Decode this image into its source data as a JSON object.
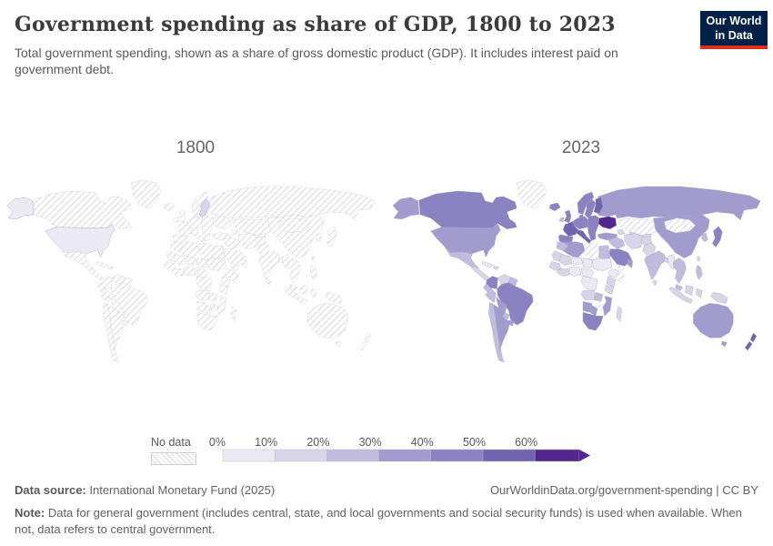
{
  "header": {
    "title": "Government spending as share of GDP, 1800 to 2023",
    "subtitle": "Total government spending, shown as a share of gross domestic product (GDP). It includes interest paid on government debt.",
    "logo": {
      "line1": "Our World",
      "line2": "in Data"
    }
  },
  "legend": {
    "no_data_label": "No data",
    "ticks": [
      "0%",
      "10%",
      "20%",
      "30%",
      "40%",
      "50%",
      "60%"
    ]
  },
  "footer": {
    "data_source_label": "Data source:",
    "data_source_value": " International Monetary Fund (2025)",
    "url_credit": "OurWorldinData.org/government-spending | CC BY",
    "note_label": "Note:",
    "note_value": " Data for general government (includes central, state, and local governments and social security funds) is used when available. When not, data refers to central government."
  },
  "colors": {
    "logo_background": "#002147",
    "logo_accent": "#dc2f20",
    "title_text": "#3b3b3b",
    "body_text": "#5b5b5b"
  },
  "chart_data": {
    "type": "choropleth",
    "title": "Government spending as share of GDP, 1800 to 2023",
    "unit": "share of GDP (%)",
    "source": "International Monetary Fund (2025)",
    "legend_position": "bottom",
    "no_data": "No data",
    "legend_bins": [
      {
        "range": "0-10%",
        "color": "#ebe9f3"
      },
      {
        "range": "10-20%",
        "color": "#d8d5e9"
      },
      {
        "range": "20-30%",
        "color": "#c0bcde"
      },
      {
        "range": "30-40%",
        "color": "#a29cce"
      },
      {
        "range": "40-50%",
        "color": "#8b83c1"
      },
      {
        "range": "50-60%",
        "color": "#7265b0"
      },
      {
        "range": "60%+",
        "color": "#54278f"
      }
    ],
    "panels": [
      {
        "year": "1800",
        "all_other_regions": "No data",
        "values": {
          "United States": "0-10%",
          "Sweden": "10-20%"
        }
      },
      {
        "year": "2023",
        "all_other_regions": "No data",
        "values": {
          "Canada": "40-50%",
          "United States": "30-40%",
          "Greenland": "No data",
          "Mexico": "20-30%",
          "Central America": "10-20%",
          "Cuba": "0-10%",
          "Hispaniola": "10-20%",
          "Colombia": "40-50%",
          "Venezuela": "10-20%",
          "Guyanas": "20-30%",
          "Ecuador": "20-30%",
          "Peru": "20-30%",
          "Brazil": "40-50%",
          "Bolivia": "30-40%",
          "Paraguay": "20-30%",
          "Chile": "20-30%",
          "Argentina": "30-40%",
          "Uruguay": "30-40%",
          "Iceland": "40-50%",
          "United Kingdom": "40-50%",
          "Ireland": "20-30%",
          "Norway": "40-50%",
          "Sweden": "40-50%",
          "Finland": "50-60%",
          "Denmark": "40-50%",
          "Central Europe": "40-50%",
          "France": "50-60%",
          "Spain and Portugal": "40-50%",
          "Italy": "50-60%",
          "Eastern Europe": "40-50%",
          "Ukraine": "60%+",
          "Russia": "30-40%",
          "Kazakhstan": "No data",
          "Central Asia": "10-20%",
          "Turkey": "30-40%",
          "Caucasus": "10-20%",
          "Iraq and Syria": "20-30%",
          "Saudi Arabia": "40-50%",
          "Yemen": "No data",
          "Oman": "30-40%",
          "Iran": "10-20%",
          "Afghanistan": "10-20%",
          "Pakistan": "10-20%",
          "India": "20-30%",
          "Sri Lanka": "10-20%",
          "Bangladesh": "10-20%",
          "Myanmar": "0-10%",
          "China": "30-40%",
          "Mongolia": "No data",
          "South Korea": "20-30%",
          "Japan": "40-50%",
          "Taiwan": "10-20%",
          "Indochina": "20-30%",
          "Malaysia": "20-30%",
          "Philippines": "20-30%",
          "Indonesia": "10-20%",
          "Borneo": "10-20%",
          "Sulawesi": "10-20%",
          "New Guinea": "10-20%",
          "Australia": "30-40%",
          "New Zealand": "50-60%",
          "Morocco": "20-30%",
          "Algeria": "30-40%",
          "Libya": "No data",
          "Egypt": "20-30%",
          "Mauritania": "10-20%",
          "Mali": "10-20%",
          "Niger": "0-10%",
          "Chad": "0-10%",
          "Sudan": "0-10%",
          "West Africa coast": "10-20%",
          "Ghana and Ivory Coast": "10-20%",
          "Nigeria": "0-10%",
          "Cameroon and CAR": "0-10%",
          "Ethiopia": "0-10%",
          "Somalia": "No data",
          "Kenya and Uganda": "10-20%",
          "DR Congo": "0-10%",
          "Tanzania": "10-20%",
          "Angola": "10-20%",
          "Zambia": "20-30%",
          "Mozambique": "30-40%",
          "Zimbabwe": "No data",
          "Namibia": "30-40%",
          "Botswana": "30-40%",
          "South Africa": "40-50%",
          "Madagascar": "10-20%"
        }
      }
    ]
  }
}
